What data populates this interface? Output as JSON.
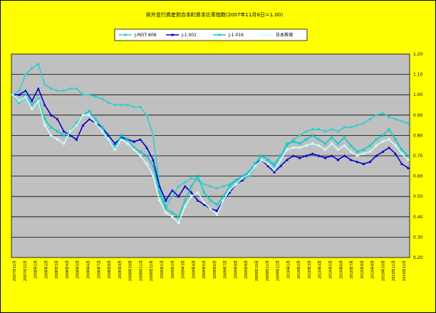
{
  "chart_data": {
    "type": "line",
    "title": "県外並行資産割合本町資本比率指数(2007年11月8日＝1.00)",
    "ylim": [
      0.2,
      1.2
    ],
    "yticks": [
      "0.20",
      "0.30",
      "0.40",
      "0.50",
      "0.60",
      "0.70",
      "0.80",
      "0.90",
      "1.00",
      "1.10",
      "1.20"
    ],
    "grid": true,
    "legend_position": "top-center",
    "x_labels": [
      "2007年11月",
      "2007年12月",
      "2008年1月",
      "2008年2月",
      "2008年3月",
      "2008年4月",
      "2008年5月",
      "2008年6月",
      "2008年7月",
      "2008年8月",
      "2008年9月",
      "2008年10月",
      "2008年11月",
      "2008年12月",
      "2009年1月",
      "2009年2月",
      "2009年3月",
      "2009年4月",
      "2009年5月",
      "2009年6月",
      "2009年7月",
      "2009年8月",
      "2009年9月",
      "2009年10月",
      "2009年11月",
      "2009年12月",
      "2010年1月",
      "2010年2月",
      "2010年3月",
      "2010年4月",
      "2010年5月",
      "2010年6月",
      "2010年7月",
      "2010年8月",
      "2010年9月",
      "2010年10月",
      "2010年11月",
      "2010年12月"
    ],
    "series": [
      {
        "name": "J-REIT 808",
        "color": "#33cccc",
        "marker": "diamond",
        "points": [
          [
            0,
            1.0
          ],
          [
            1,
            1.02
          ],
          [
            2,
            1.1
          ],
          [
            3,
            1.13
          ],
          [
            4,
            1.15
          ],
          [
            5,
            1.05
          ],
          [
            6,
            1.03
          ],
          [
            7,
            1.02
          ],
          [
            8,
            1.02
          ],
          [
            9,
            1.03
          ],
          [
            10,
            1.03
          ],
          [
            11,
            1.0
          ],
          [
            12,
            1.0
          ],
          [
            13,
            0.99
          ],
          [
            14,
            0.98
          ],
          [
            15,
            0.96
          ],
          [
            16,
            0.95
          ],
          [
            17,
            0.95
          ],
          [
            18,
            0.95
          ],
          [
            19,
            0.94
          ],
          [
            20,
            0.94
          ],
          [
            21,
            0.9
          ],
          [
            22,
            0.8
          ],
          [
            23,
            0.55
          ],
          [
            24,
            0.45
          ],
          [
            25,
            0.5
          ],
          [
            26,
            0.55
          ],
          [
            27,
            0.57
          ],
          [
            28,
            0.59
          ],
          [
            29,
            0.58
          ],
          [
            30,
            0.56
          ],
          [
            31,
            0.55
          ],
          [
            32,
            0.54
          ],
          [
            33,
            0.55
          ],
          [
            34,
            0.56
          ],
          [
            35,
            0.58
          ],
          [
            36,
            0.58
          ],
          [
            37,
            0.6
          ],
          [
            38,
            0.65
          ],
          [
            39,
            0.7
          ],
          [
            40,
            0.68
          ],
          [
            41,
            0.66
          ],
          [
            42,
            0.7
          ],
          [
            43,
            0.75
          ],
          [
            44,
            0.78
          ],
          [
            45,
            0.8
          ],
          [
            46,
            0.82
          ],
          [
            47,
            0.83
          ],
          [
            48,
            0.83
          ],
          [
            49,
            0.82
          ],
          [
            50,
            0.83
          ],
          [
            51,
            0.82
          ],
          [
            52,
            0.84
          ],
          [
            53,
            0.84
          ],
          [
            54,
            0.85
          ],
          [
            55,
            0.86
          ],
          [
            56,
            0.88
          ],
          [
            57,
            0.9
          ],
          [
            58,
            0.91
          ],
          [
            59,
            0.89
          ],
          [
            60,
            0.88
          ],
          [
            61,
            0.87
          ],
          [
            62,
            0.86
          ]
        ]
      },
      {
        "name": "J-1.001",
        "color": "#0000cc",
        "marker": "triangle",
        "points": [
          [
            0,
            1.0
          ],
          [
            1,
            1.0
          ],
          [
            2,
            1.02
          ],
          [
            3,
            0.97
          ],
          [
            4,
            1.03
          ],
          [
            5,
            0.95
          ],
          [
            6,
            0.9
          ],
          [
            7,
            0.88
          ],
          [
            8,
            0.82
          ],
          [
            9,
            0.8
          ],
          [
            10,
            0.78
          ],
          [
            11,
            0.85
          ],
          [
            12,
            0.88
          ],
          [
            13,
            0.86
          ],
          [
            14,
            0.84
          ],
          [
            15,
            0.8
          ],
          [
            16,
            0.76
          ],
          [
            17,
            0.79
          ],
          [
            18,
            0.78
          ],
          [
            19,
            0.77
          ],
          [
            20,
            0.78
          ],
          [
            21,
            0.74
          ],
          [
            22,
            0.68
          ],
          [
            23,
            0.55
          ],
          [
            24,
            0.48
          ],
          [
            25,
            0.53
          ],
          [
            26,
            0.5
          ],
          [
            27,
            0.55
          ],
          [
            28,
            0.52
          ],
          [
            29,
            0.48
          ],
          [
            30,
            0.46
          ],
          [
            31,
            0.44
          ],
          [
            32,
            0.43
          ],
          [
            33,
            0.48
          ],
          [
            34,
            0.52
          ],
          [
            35,
            0.56
          ],
          [
            36,
            0.58
          ],
          [
            37,
            0.62
          ],
          [
            38,
            0.66
          ],
          [
            39,
            0.68
          ],
          [
            40,
            0.65
          ],
          [
            41,
            0.62
          ],
          [
            42,
            0.65
          ],
          [
            43,
            0.68
          ],
          [
            44,
            0.7
          ],
          [
            45,
            0.69
          ],
          [
            46,
            0.7
          ],
          [
            47,
            0.71
          ],
          [
            48,
            0.7
          ],
          [
            49,
            0.69
          ],
          [
            50,
            0.7
          ],
          [
            51,
            0.68
          ],
          [
            52,
            0.7
          ],
          [
            53,
            0.68
          ],
          [
            54,
            0.67
          ],
          [
            55,
            0.66
          ],
          [
            56,
            0.67
          ],
          [
            57,
            0.7
          ],
          [
            58,
            0.72
          ],
          [
            59,
            0.74
          ],
          [
            60,
            0.71
          ],
          [
            61,
            0.66
          ],
          [
            62,
            0.64
          ]
        ]
      },
      {
        "name": "J-1.016",
        "color": "#00cccc",
        "marker": "x",
        "points": [
          [
            0,
            1.0
          ],
          [
            1,
            0.96
          ],
          [
            2,
            1.0
          ],
          [
            3,
            0.95
          ],
          [
            4,
            0.98
          ],
          [
            5,
            0.88
          ],
          [
            6,
            0.84
          ],
          [
            7,
            0.82
          ],
          [
            8,
            0.8
          ],
          [
            9,
            0.82
          ],
          [
            10,
            0.86
          ],
          [
            11,
            0.9
          ],
          [
            12,
            0.92
          ],
          [
            13,
            0.88
          ],
          [
            14,
            0.84
          ],
          [
            15,
            0.78
          ],
          [
            16,
            0.74
          ],
          [
            17,
            0.8
          ],
          [
            18,
            0.78
          ],
          [
            19,
            0.74
          ],
          [
            20,
            0.72
          ],
          [
            21,
            0.7
          ],
          [
            22,
            0.65
          ],
          [
            23,
            0.52
          ],
          [
            24,
            0.44
          ],
          [
            25,
            0.42
          ],
          [
            26,
            0.4
          ],
          [
            27,
            0.48
          ],
          [
            28,
            0.55
          ],
          [
            29,
            0.6
          ],
          [
            30,
            0.52
          ],
          [
            31,
            0.48
          ],
          [
            32,
            0.46
          ],
          [
            33,
            0.5
          ],
          [
            34,
            0.55
          ],
          [
            35,
            0.58
          ],
          [
            36,
            0.6
          ],
          [
            37,
            0.62
          ],
          [
            38,
            0.66
          ],
          [
            39,
            0.7
          ],
          [
            40,
            0.68
          ],
          [
            41,
            0.65
          ],
          [
            42,
            0.7
          ],
          [
            43,
            0.76
          ],
          [
            44,
            0.77
          ],
          [
            45,
            0.76
          ],
          [
            46,
            0.78
          ],
          [
            47,
            0.8
          ],
          [
            48,
            0.78
          ],
          [
            49,
            0.76
          ],
          [
            50,
            0.79
          ],
          [
            51,
            0.76
          ],
          [
            52,
            0.79
          ],
          [
            53,
            0.75
          ],
          [
            54,
            0.72
          ],
          [
            55,
            0.73
          ],
          [
            56,
            0.75
          ],
          [
            57,
            0.78
          ],
          [
            58,
            0.8
          ],
          [
            59,
            0.83
          ],
          [
            60,
            0.78
          ],
          [
            61,
            0.73
          ],
          [
            62,
            0.7
          ]
        ]
      },
      {
        "name": "日本株価",
        "color": "#ccffff",
        "marker": "square",
        "points": [
          [
            0,
            1.0
          ],
          [
            1,
            0.97
          ],
          [
            2,
            0.99
          ],
          [
            3,
            0.93
          ],
          [
            4,
            0.97
          ],
          [
            5,
            0.85
          ],
          [
            6,
            0.8
          ],
          [
            7,
            0.78
          ],
          [
            8,
            0.76
          ],
          [
            9,
            0.82
          ],
          [
            10,
            0.85
          ],
          [
            11,
            0.9
          ],
          [
            12,
            0.9
          ],
          [
            13,
            0.86
          ],
          [
            14,
            0.82
          ],
          [
            15,
            0.78
          ],
          [
            16,
            0.73
          ],
          [
            17,
            0.78
          ],
          [
            18,
            0.76
          ],
          [
            19,
            0.73
          ],
          [
            20,
            0.7
          ],
          [
            21,
            0.66
          ],
          [
            22,
            0.6
          ],
          [
            23,
            0.48
          ],
          [
            24,
            0.42
          ],
          [
            25,
            0.4
          ],
          [
            26,
            0.37
          ],
          [
            27,
            0.45
          ],
          [
            28,
            0.5
          ],
          [
            29,
            0.52
          ],
          [
            30,
            0.47
          ],
          [
            31,
            0.44
          ],
          [
            32,
            0.41
          ],
          [
            33,
            0.48
          ],
          [
            34,
            0.53
          ],
          [
            35,
            0.56
          ],
          [
            36,
            0.59
          ],
          [
            37,
            0.61
          ],
          [
            38,
            0.65
          ],
          [
            39,
            0.68
          ],
          [
            40,
            0.66
          ],
          [
            41,
            0.63
          ],
          [
            42,
            0.68
          ],
          [
            43,
            0.73
          ],
          [
            44,
            0.74
          ],
          [
            45,
            0.74
          ],
          [
            46,
            0.75
          ],
          [
            47,
            0.76
          ],
          [
            48,
            0.75
          ],
          [
            49,
            0.73
          ],
          [
            50,
            0.76
          ],
          [
            51,
            0.73
          ],
          [
            52,
            0.75
          ],
          [
            53,
            0.72
          ],
          [
            54,
            0.7
          ],
          [
            55,
            0.71
          ],
          [
            56,
            0.72
          ],
          [
            57,
            0.75
          ],
          [
            58,
            0.77
          ],
          [
            59,
            0.78
          ],
          [
            60,
            0.75
          ],
          [
            61,
            0.71
          ],
          [
            62,
            0.68
          ]
        ]
      }
    ]
  }
}
